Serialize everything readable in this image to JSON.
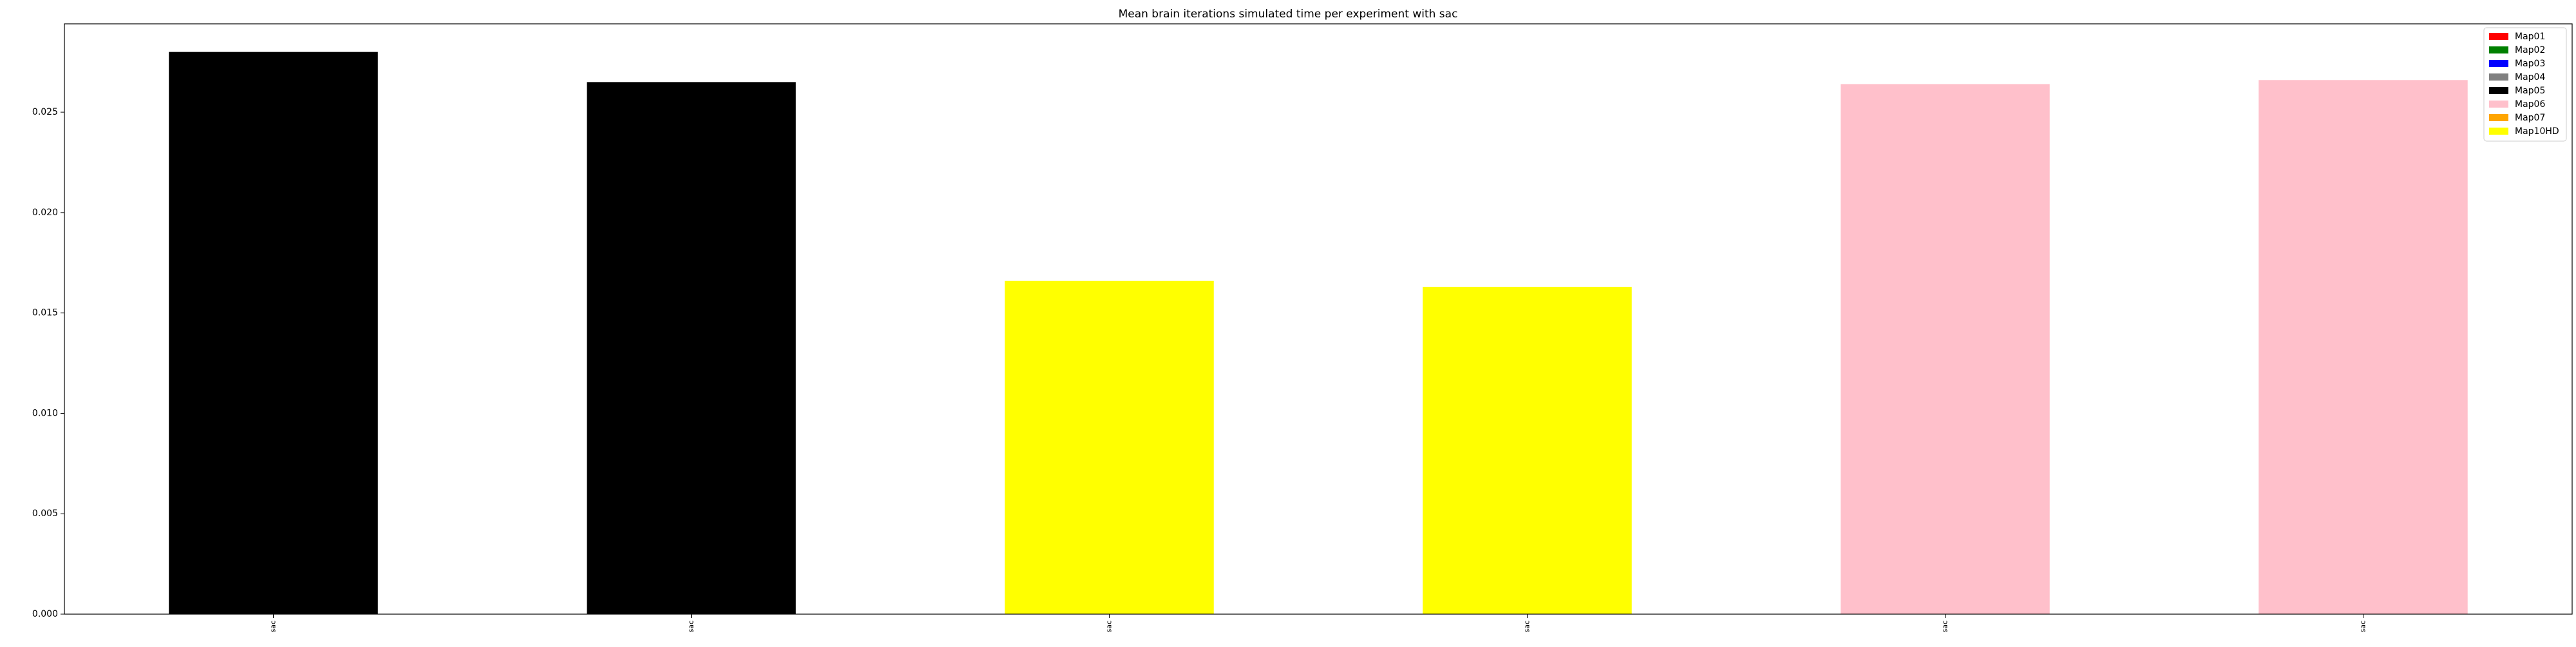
{
  "chart_data": {
    "type": "bar",
    "title": "Mean brain iterations simulated time per experiment with sac",
    "xlabel": "",
    "ylabel": "",
    "categories": [
      "sac",
      "sac",
      "sac",
      "sac",
      "sac",
      "sac"
    ],
    "values": [
      0.028,
      0.0265,
      0.0166,
      0.0163,
      0.0264,
      0.0266
    ],
    "bar_colors": [
      "#000000",
      "#000000",
      "#ffff00",
      "#ffff00",
      "#ffc0cb",
      "#ffc0cb"
    ],
    "ylim": [
      0,
      0.0294
    ],
    "yticks": [
      "0.000",
      "0.005",
      "0.010",
      "0.015",
      "0.020",
      "0.025"
    ],
    "grid": false,
    "legend_position": "top-right",
    "legend": [
      {
        "label": "Map01",
        "color": "#ff0000"
      },
      {
        "label": "Map02",
        "color": "#008000"
      },
      {
        "label": "Map03",
        "color": "#0000ff"
      },
      {
        "label": "Map04",
        "color": "#808080"
      },
      {
        "label": "Map05",
        "color": "#000000"
      },
      {
        "label": "Map06",
        "color": "#ffc0cb"
      },
      {
        "label": "Map07",
        "color": "#ffa500"
      },
      {
        "label": "Map10HD",
        "color": "#ffff00"
      }
    ]
  }
}
